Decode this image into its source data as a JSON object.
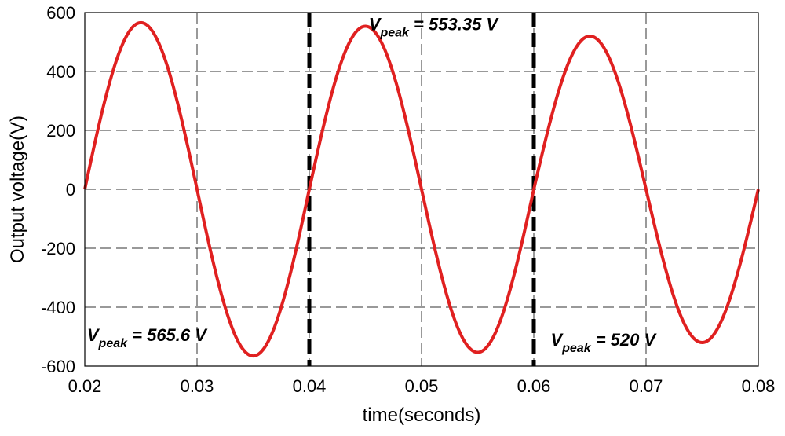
{
  "chart_data": {
    "type": "line",
    "xlabel": "time(seconds)",
    "ylabel": "Output voltage(V)",
    "xlim": [
      0.02,
      0.08
    ],
    "ylim": [
      -600,
      600
    ],
    "grid": true,
    "x_ticks": [
      0.02,
      0.03,
      0.04,
      0.05,
      0.06,
      0.07,
      0.08
    ],
    "x_tick_labels": [
      "0.02",
      "0.03",
      "0.04",
      "0.05",
      "0.06",
      "0.07",
      "0.08"
    ],
    "y_ticks": [
      600,
      400,
      200,
      0,
      -200,
      -400,
      -600
    ],
    "y_tick_labels": [
      "600",
      "400",
      "200",
      "0",
      "-200",
      "-400",
      "-600"
    ],
    "series": [
      {
        "color": "#e02020",
        "frequency_hz": 50,
        "segments": [
          {
            "x_start": 0.02,
            "x_end": 0.04,
            "amplitude": 565.6
          },
          {
            "x_start": 0.04,
            "x_end": 0.06,
            "amplitude": 553.35
          },
          {
            "x_start": 0.06,
            "x_end": 0.08,
            "amplitude": 520
          }
        ]
      }
    ],
    "markers": [
      {
        "x": 0.04,
        "style": "thick-dashed",
        "color": "#000000"
      },
      {
        "x": 0.06,
        "style": "thick-dashed",
        "color": "#000000"
      }
    ],
    "annotations": [
      {
        "main": "V",
        "sub": "peak",
        "value": " = 565.6 V",
        "x": 0.0202,
        "y": -515
      },
      {
        "main": "V",
        "sub": "peak",
        "value": " = 553.35 V",
        "x": 0.0453,
        "y": 540
      },
      {
        "main": "V",
        "sub": "peak",
        "value": " = 520 V",
        "x": 0.0615,
        "y": -530
      }
    ]
  }
}
